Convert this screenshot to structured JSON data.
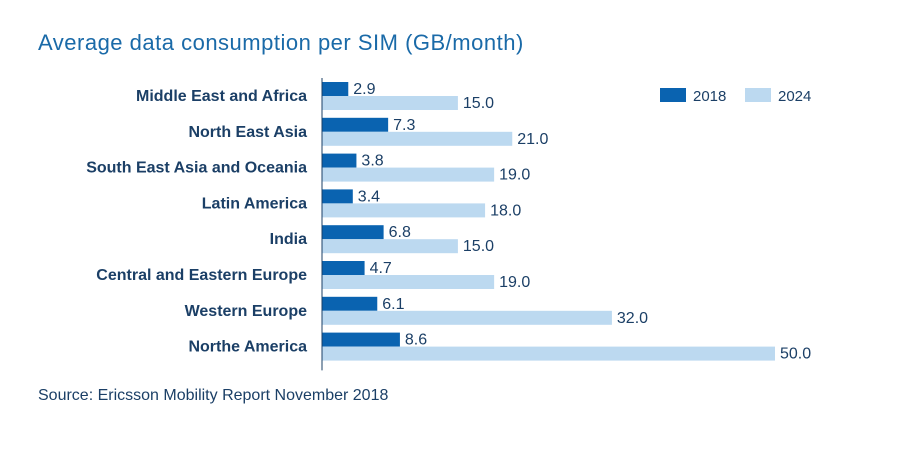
{
  "title": "Average data consumption per SIM (GB/month)",
  "source": "Source: Ericsson Mobility Report November 2018",
  "colors": {
    "s2018": "#0a63b0",
    "s2024": "#bcd9f0",
    "title": "#1a6aa8",
    "text": "#1b3f66",
    "axis": "#1b3f66"
  },
  "chart_data": {
    "type": "bar",
    "orientation": "horizontal",
    "title": "Average data consumption per SIM (GB/month)",
    "categories": [
      "Middle East and Africa",
      "North East Asia",
      "South East Asia and Oceania",
      "Latin America",
      "India",
      "Central and Eastern Europe",
      "Western Europe",
      "Northe America"
    ],
    "series": [
      {
        "name": "2018",
        "values": [
          2.9,
          7.3,
          3.8,
          3.4,
          6.8,
          4.7,
          6.1,
          8.6
        ],
        "labels": [
          "2.9",
          "7.3",
          "3.8",
          "3.4",
          "6.8",
          "4.7",
          "6.1",
          "8.6"
        ]
      },
      {
        "name": "2024",
        "values": [
          15.0,
          21.0,
          19.0,
          18.0,
          15.0,
          19.0,
          32.0,
          50.0
        ],
        "labels": [
          "15.0",
          "21.0",
          "19.0",
          "18.0",
          "15.0",
          "19.0",
          "32.0",
          "50.0"
        ]
      }
    ],
    "xlim": [
      0,
      50
    ],
    "legend_position": "top-right",
    "grid": false
  }
}
